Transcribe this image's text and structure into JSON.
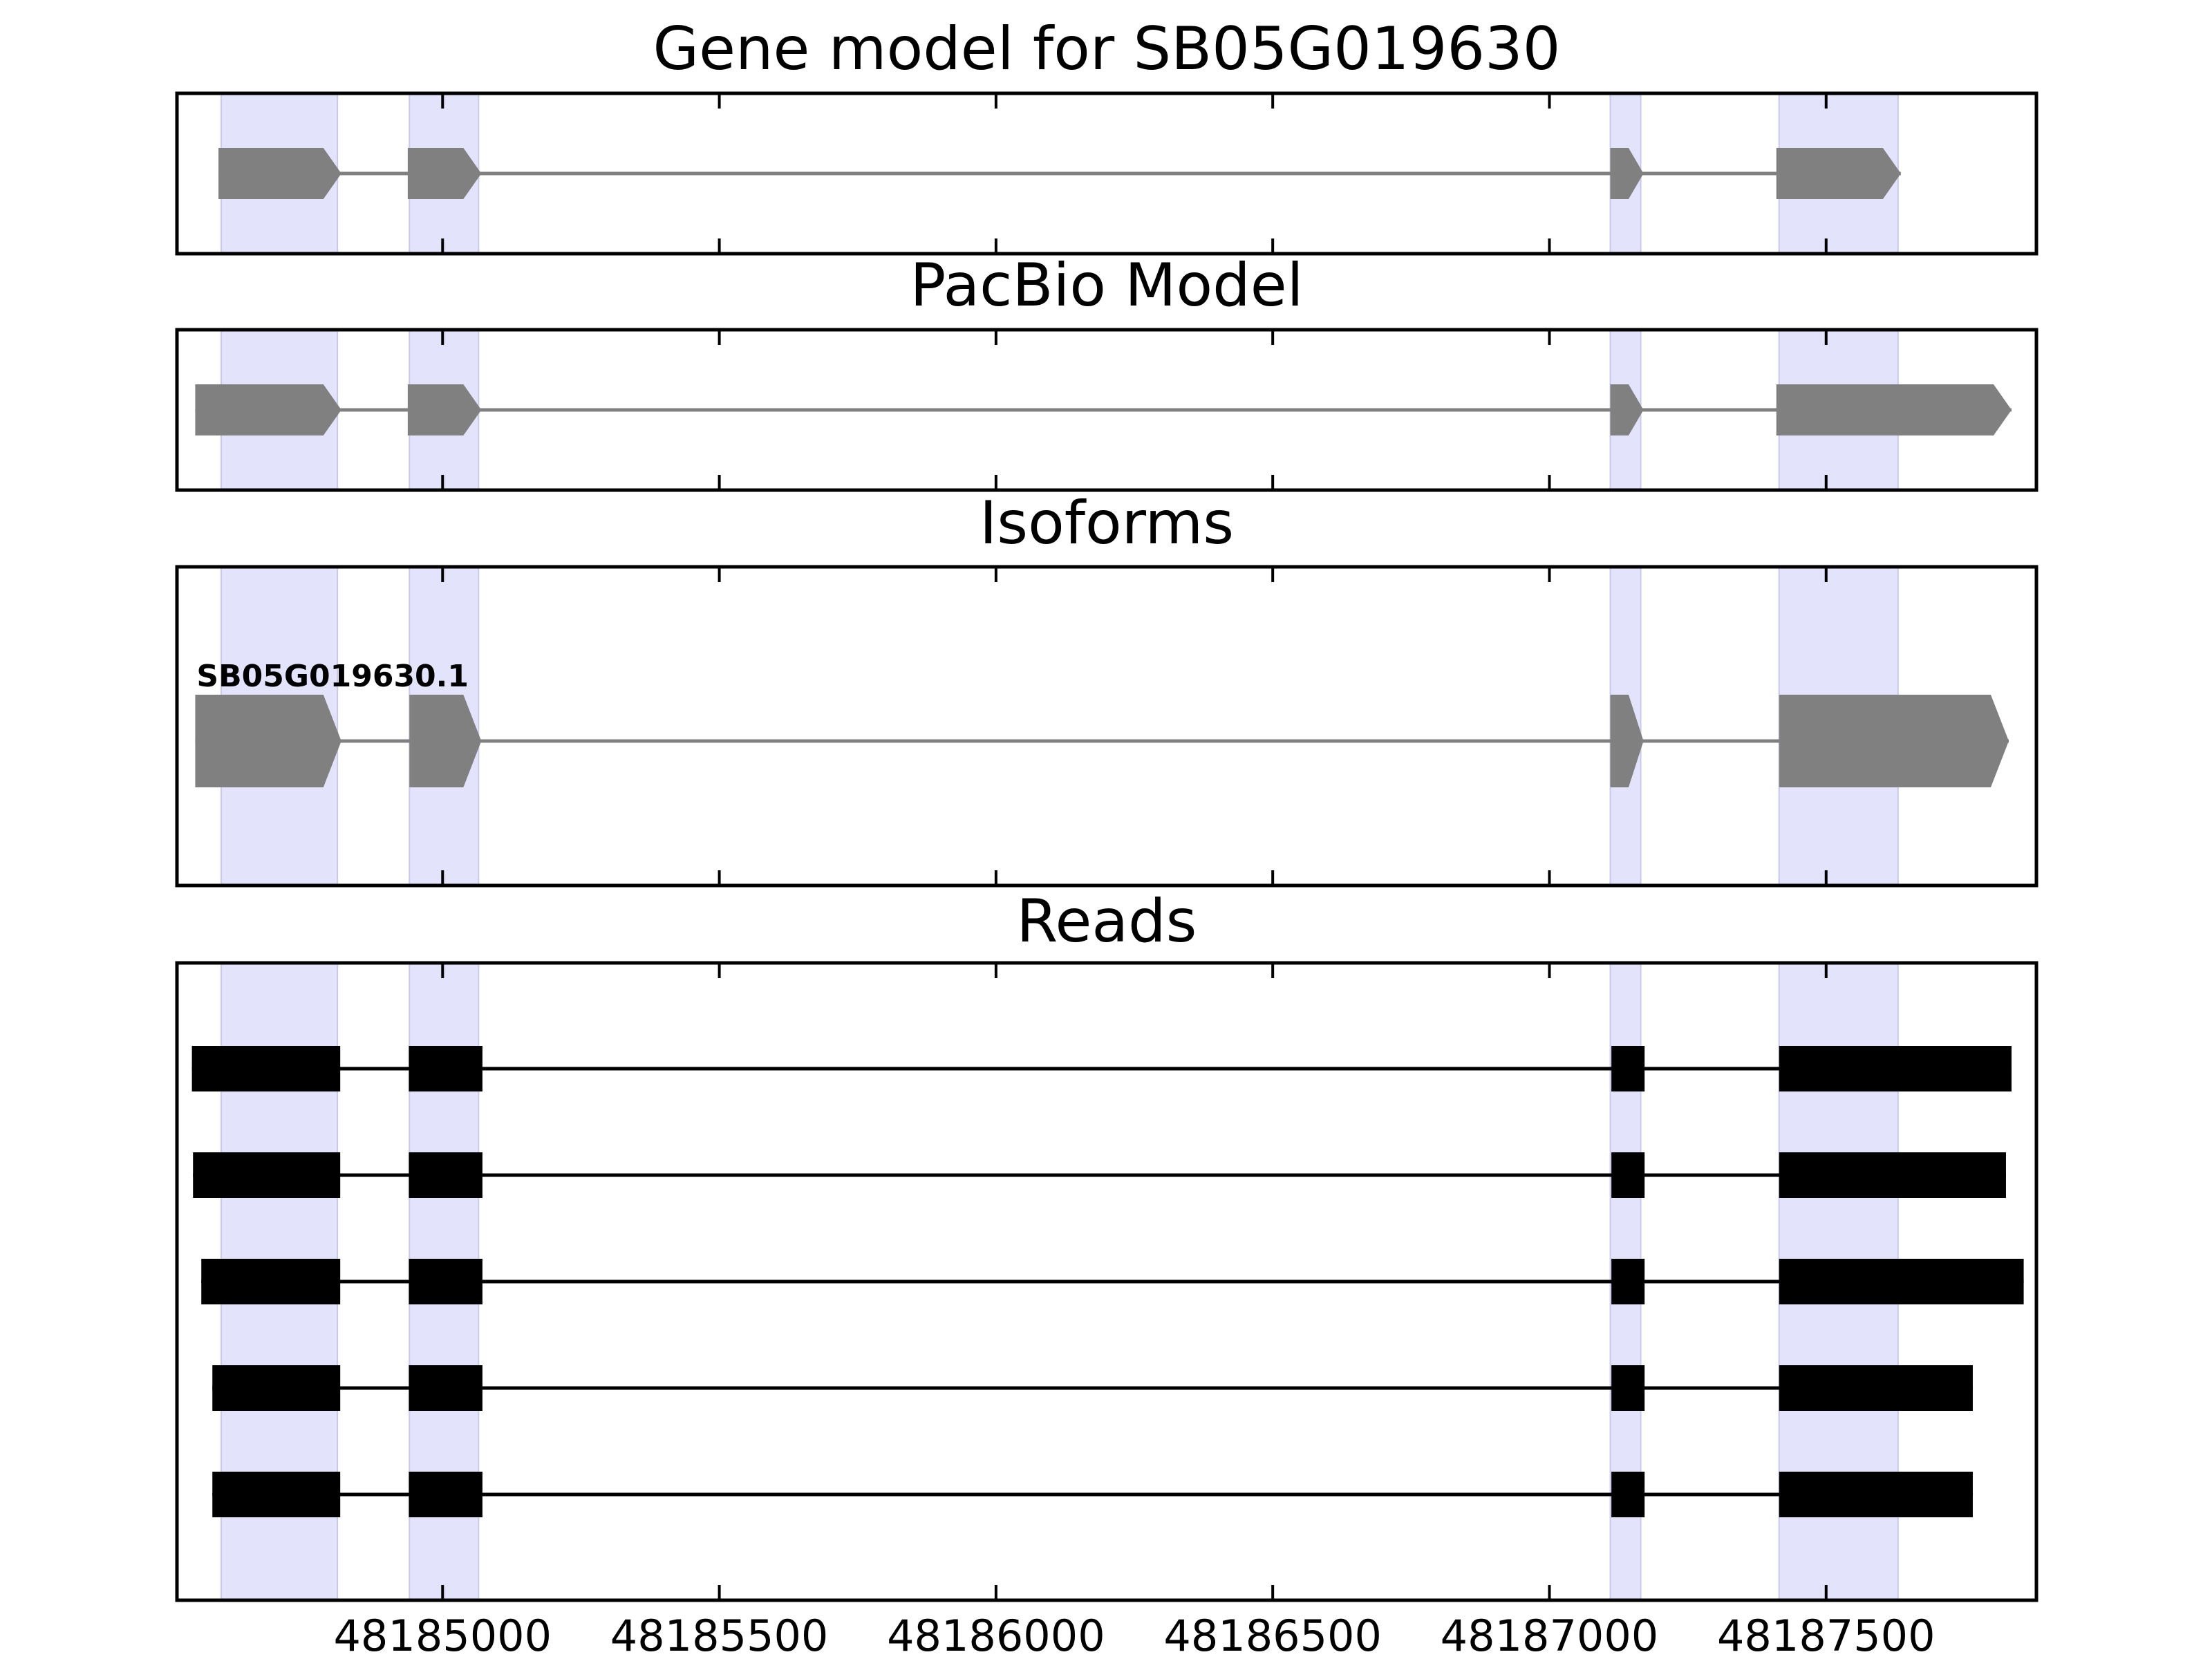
{
  "chart_data": {
    "type": "gene-structure",
    "xlim": [
      48184520,
      48187880
    ],
    "xticks": [
      48185000,
      48185500,
      48186000,
      48186500,
      48187000,
      48187500
    ],
    "exon_highlights": [
      [
        48184600,
        48184810
      ],
      [
        48184940,
        48185065
      ],
      [
        48187110,
        48187165
      ],
      [
        48187415,
        48187630
      ]
    ],
    "colors": {
      "highlight": "#e3e3fb",
      "model": "#808080",
      "reads": "#000000",
      "frame": "#000000"
    },
    "panels": [
      {
        "key": "gene_model",
        "title": "Gene model for SB05G019630",
        "style": "arrow",
        "tracks": [
          {
            "label": "",
            "exons": [
              [
                48184595,
                48184817
              ],
              [
                48184937,
                48185070
              ],
              [
                48187110,
                48187170
              ],
              [
                48187410,
                48187635
              ]
            ]
          }
        ]
      },
      {
        "key": "pacbio",
        "title": "PacBio Model",
        "style": "arrow",
        "tracks": [
          {
            "label": "",
            "exons": [
              [
                48184553,
                48184817
              ],
              [
                48184937,
                48185070
              ],
              [
                48187110,
                48187170
              ],
              [
                48187410,
                48187835
              ]
            ]
          }
        ]
      },
      {
        "key": "isoforms",
        "title": "Isoforms",
        "style": "arrow",
        "tracks": [
          {
            "label": "SB05G019630.1",
            "exons": [
              [
                48184553,
                48184817
              ],
              [
                48184940,
                48185070
              ],
              [
                48187110,
                48187170
              ],
              [
                48187415,
                48187830
              ]
            ]
          }
        ]
      },
      {
        "key": "reads",
        "title": "Reads",
        "style": "box",
        "tracks": [
          {
            "label": "",
            "exons": [
              [
                48184547,
                48184815
              ],
              [
                48184939,
                48185072
              ],
              [
                48187112,
                48187172
              ],
              [
                48187415,
                48187835
              ]
            ]
          },
          {
            "label": "",
            "exons": [
              [
                48184549,
                48184815
              ],
              [
                48184939,
                48185072
              ],
              [
                48187112,
                48187172
              ],
              [
                48187415,
                48187825
              ]
            ]
          },
          {
            "label": "",
            "exons": [
              [
                48184564,
                48184815
              ],
              [
                48184939,
                48185072
              ],
              [
                48187112,
                48187172
              ],
              [
                48187415,
                48187857
              ]
            ]
          },
          {
            "label": "",
            "exons": [
              [
                48184584,
                48184815
              ],
              [
                48184939,
                48185072
              ],
              [
                48187112,
                48187172
              ],
              [
                48187415,
                48187765
              ]
            ]
          },
          {
            "label": "",
            "exons": [
              [
                48184584,
                48184815
              ],
              [
                48184939,
                48185072
              ],
              [
                48187112,
                48187172
              ],
              [
                48187415,
                48187765
              ]
            ]
          }
        ]
      }
    ]
  }
}
